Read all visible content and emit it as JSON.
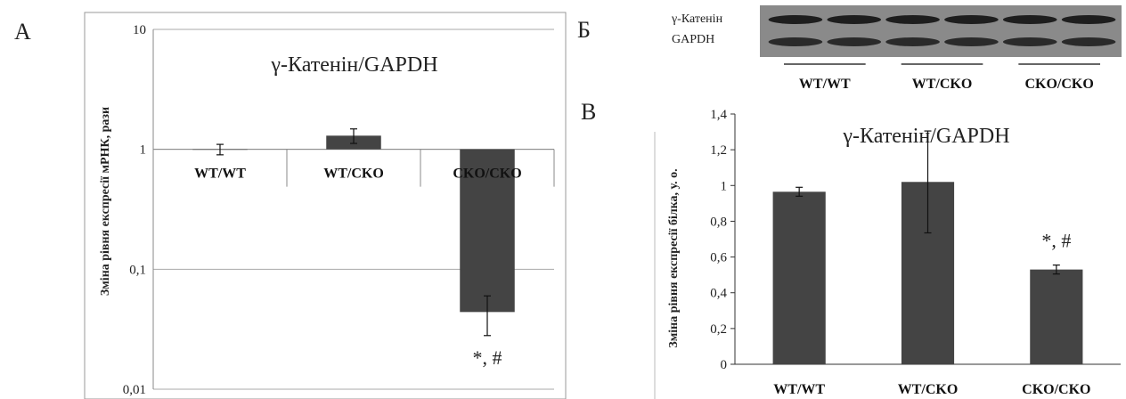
{
  "panels": {
    "a_letter": "А",
    "b_letter": "Б",
    "c_letter": "В"
  },
  "blot": {
    "rows": [
      "γ-Катенін",
      "GAPDH"
    ],
    "groups": [
      "WT/WT",
      "WT/CKO",
      "CKO/CKO"
    ]
  },
  "chart_data": [
    {
      "type": "bar",
      "title": "γ-Катенін/GAPDH",
      "ylabel": "Зміна рівня експресії мРНК, рази",
      "yscale": "log",
      "ylim": [
        0.01,
        10
      ],
      "yticks": [
        0.01,
        0.1,
        1,
        10
      ],
      "ytick_labels": [
        "0,01",
        "0,1",
        "1",
        "10"
      ],
      "baseline": 1,
      "categories": [
        "WT/WT",
        "WT/CKO",
        "CKO/CKO"
      ],
      "values": [
        1.0,
        1.3,
        0.044
      ],
      "errors": [
        0.1,
        0.18,
        0.016
      ],
      "annotations": [
        {
          "category": "CKO/CKO",
          "text": "*, #"
        }
      ],
      "grid": true,
      "bar_color": "#444444"
    },
    {
      "type": "bar",
      "title": "γ-Катенін/GAPDH",
      "ylabel": "Зміна рівня експресії білка, у. о.",
      "ylim": [
        0,
        1.4
      ],
      "yticks": [
        0,
        0.2,
        0.4,
        0.6,
        0.8,
        1,
        1.2,
        1.4
      ],
      "ytick_labels": [
        "0",
        "0,2",
        "0,4",
        "0,6",
        "0,8",
        "1",
        "1,2",
        "1,4"
      ],
      "categories": [
        "WT/WT",
        "WT/CKO",
        "CKO/CKO"
      ],
      "values": [
        0.965,
        1.02,
        0.53
      ],
      "errors": [
        0.025,
        0.285,
        0.025
      ],
      "annotations": [
        {
          "category": "CKO/CKO",
          "text": "*, #"
        }
      ],
      "grid": false,
      "bar_color": "#444444"
    }
  ]
}
